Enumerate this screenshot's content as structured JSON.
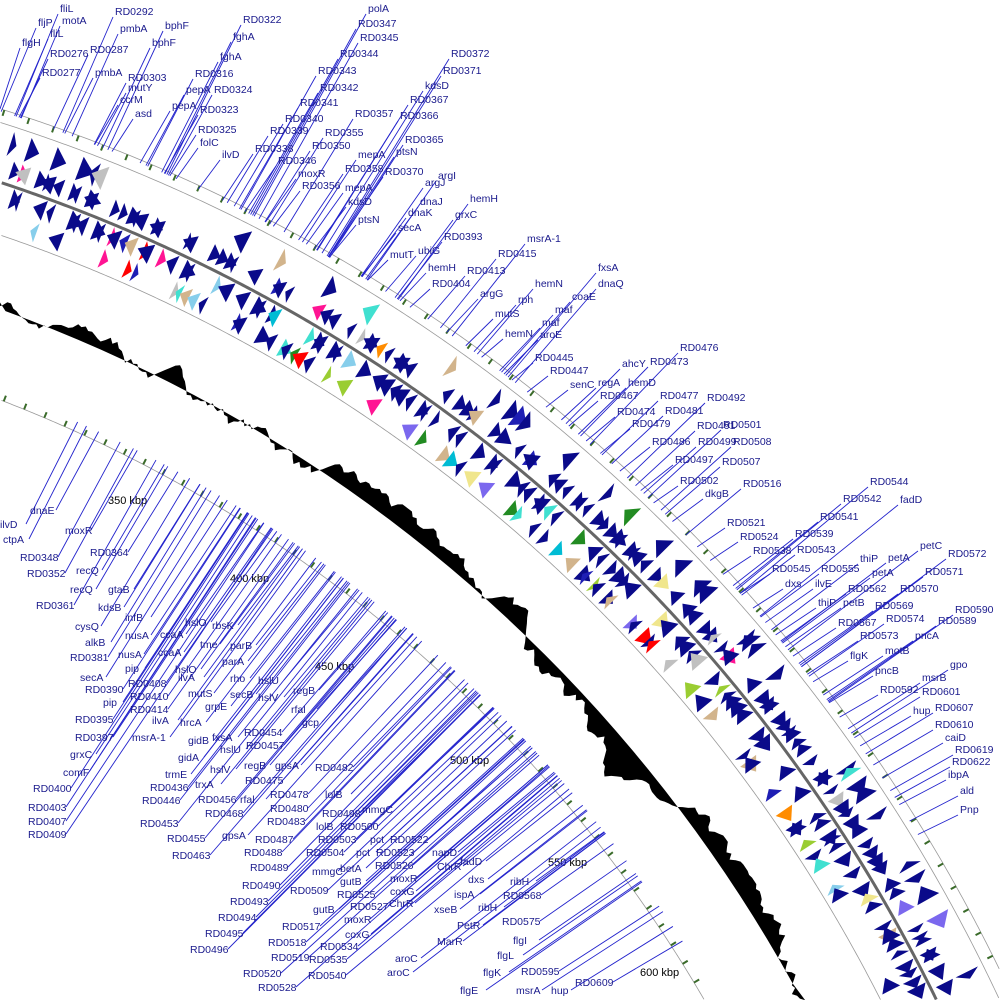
{
  "colors": {
    "label": "#1a1a8c",
    "leader": "#2222cc",
    "gc_plot": "#000000",
    "backbone": "#666666",
    "ring": "#999999",
    "feature_main": "#0a0a8a",
    "feature_palette": [
      "#0a0a8a",
      "#1e1eb4",
      "#00bcd4",
      "#40e0d0",
      "#ff8c00",
      "#ff1493",
      "#c0c0c0",
      "#9acd32",
      "#d2b48c",
      "#7b68ee",
      "#ff0000",
      "#228b22",
      "#87ceeb",
      "#f0e68c"
    ]
  },
  "tick_labels": [
    "350 kbp",
    "400 kbp",
    "450 kbp",
    "500 kbp",
    "550 kbp",
    "600 kbp"
  ],
  "outer_labels": [
    "fliL",
    "RD0292",
    "polA",
    "RD0322",
    "fljP",
    "motA",
    "bphF",
    "RD0347",
    "pmbA",
    "fliL",
    "fghA",
    "RD0345",
    "flgH",
    "bphF",
    "RD0287",
    "RD0276",
    "RD0344",
    "RD0372",
    "fghA",
    "RD0277",
    "pmbA",
    "RD0316",
    "RD0343",
    "RD0371",
    "RD0303",
    "kdsD",
    "mutY",
    "RD0342",
    "pepA",
    "RD0324",
    "ccrM",
    "RD0367",
    "pepA",
    "RD0341",
    "RD0323",
    "asd",
    "RD0357",
    "RD0366",
    "RD0340",
    "RD0325",
    "RD0339",
    "RD0355",
    "RD0365",
    "folC",
    "RD0350",
    "RD0338",
    "ptsN",
    "mepA",
    "ilvD",
    "RD0346",
    "RD0358",
    "RD0370",
    "moxR",
    "argI",
    "RD0356",
    "mepA",
    "argJ",
    "kdsD",
    "dnaJ",
    "dnaK",
    "ptsN",
    "secA",
    "hemH",
    "grxC",
    "RD0393",
    "mutT",
    "ubiG",
    "RD0415",
    "msrA-1",
    "hemH",
    "RD0413",
    "RD0404",
    "hemN",
    "fxsA",
    "argG",
    "rph",
    "dnaQ",
    "coaE",
    "mutS",
    "maf",
    "maf",
    "aroE",
    "hemN",
    "RD0476",
    "RD0445",
    "ahcY",
    "RD0473",
    "RD0447",
    "senC",
    "regA",
    "hemD",
    "RD0467",
    "RD0477",
    "RD0492",
    "RD0474",
    "RD0481",
    "RD0479",
    "RD0491",
    "RD0501",
    "RD0486",
    "RD0499",
    "RD0508",
    "RD0497",
    "RD0507",
    "RD0502",
    "RD0516",
    "dkgB",
    "fadD",
    "RD0544",
    "RD0542",
    "RD0541",
    "RD0521",
    "RD0539",
    "RD0524",
    "RD0538",
    "RD0543",
    "petC",
    "RD0572",
    "thiP",
    "petA",
    "RD0545",
    "RD0555",
    "petA",
    "RD0571",
    "dxs",
    "ilvE",
    "RD0562",
    "RD0570",
    "thiP",
    "petB",
    "RD0590",
    "RD0569",
    "RD0589",
    "RD0567",
    "RD0574",
    "RD0573",
    "pncA",
    "flgK",
    "motB",
    "pncB",
    "msrB",
    "gpo",
    "RD0592",
    "RD0601",
    "RD0607",
    "hup",
    "RD0610",
    "caiD",
    "RD0619",
    "RD0622",
    "ibpA",
    "ald",
    "Pnp"
  ],
  "inner_labels": [
    "ilvD",
    "dnaE",
    "moxR",
    "ctpA",
    "RD0364",
    "RD0348",
    "recQ",
    "RD0352",
    "gtaB",
    "recQ",
    "RD0361",
    "kdsB",
    "cysQ",
    "infB",
    "alkB",
    "nusA",
    "ccaA",
    "RD0381",
    "nusA",
    "ccaA",
    "hslO",
    "rbsK",
    "pip",
    "hslO",
    "tme",
    "secA",
    "RD0390",
    "RD0408",
    "pip",
    "RD0410",
    "ilvA",
    "parB",
    "RD0395",
    "RD0414",
    "mutS",
    "parA",
    "RD0397",
    "ilvA",
    "grpE",
    "grxC",
    "msrA-1",
    "hrcA",
    "rho",
    "comF",
    "secB",
    "hslU",
    "RD0400",
    "gidB",
    "hslV",
    "gidA",
    "fxsA",
    "RD0454",
    "regB",
    "RD0403",
    "RD0457",
    "rfal",
    "gcp",
    "hslU",
    "regB",
    "gpsA",
    "RD0407",
    "trmE",
    "hslV",
    "RD0409",
    "RD0436",
    "RD0475",
    "RD0478",
    "RD0482",
    "RD0446",
    "trxA",
    "RD0456",
    "rfal",
    "RD0480",
    "lolB",
    "RD0453",
    "RD0468",
    "RD0483",
    "lolB",
    "RD0500",
    "mmgC",
    "RD0498",
    "RD0455",
    "RD0487",
    "RD0503",
    "pct",
    "RD0522",
    "RD0463",
    "gpsA",
    "RD0488",
    "RD0504",
    "pct",
    "RD0523",
    "napD",
    "RD0489",
    "mmgC",
    "RD0526",
    "ChrR",
    "fadD",
    "RD0490",
    "betA",
    "moxR",
    "dxs",
    "ribH",
    "RD0509",
    "gutB",
    "coxG",
    "ispA",
    "RD0568",
    "RD0493",
    "RD0525",
    "ChrR",
    "xseB",
    "ribH",
    "RD0494",
    "gutB",
    "RD0527",
    "PetR",
    "RD0575",
    "RD0495",
    "RD0517",
    "moxR",
    "MarR",
    "flgI",
    "RD0496",
    "RD0518",
    "coxG",
    "RD0534",
    "flgL",
    "aroC",
    "RD0519",
    "RD0535",
    "flgK",
    "RD0595",
    "RD0520",
    "RD0540",
    "aroC",
    "msrA",
    "hup",
    "RD0609",
    "RD0528",
    "flgE"
  ]
}
